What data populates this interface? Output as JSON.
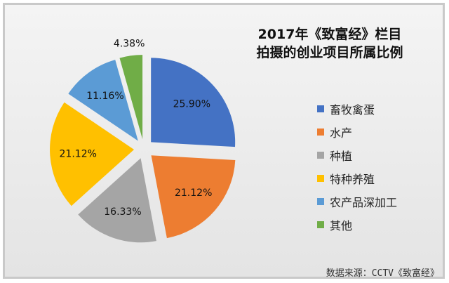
{
  "chart_data": {
    "type": "pie",
    "title_line1": "2017年《致富经》栏目",
    "title_line2": "拍摄的创业项目所属比例",
    "slices": [
      {
        "name": "畜牧禽蛋",
        "value": 25.9,
        "label": "25.90%",
        "color": "#4472c4"
      },
      {
        "name": "水产",
        "value": 21.12,
        "label": "21.12%",
        "color": "#ed7d31"
      },
      {
        "name": "种植",
        "value": 16.33,
        "label": "16.33%",
        "color": "#a5a5a5"
      },
      {
        "name": "特种养殖",
        "value": 21.12,
        "label": "21.12%",
        "color": "#ffc000"
      },
      {
        "name": "农产品深加工",
        "value": 11.16,
        "label": "11.16%",
        "color": "#5b9bd5"
      },
      {
        "name": "其他",
        "value": 4.38,
        "label": "4.38%",
        "color": "#70ad47"
      }
    ],
    "legend_position": "right",
    "exploded": true
  },
  "source_text": "数据来源：CCTV《致富经》"
}
